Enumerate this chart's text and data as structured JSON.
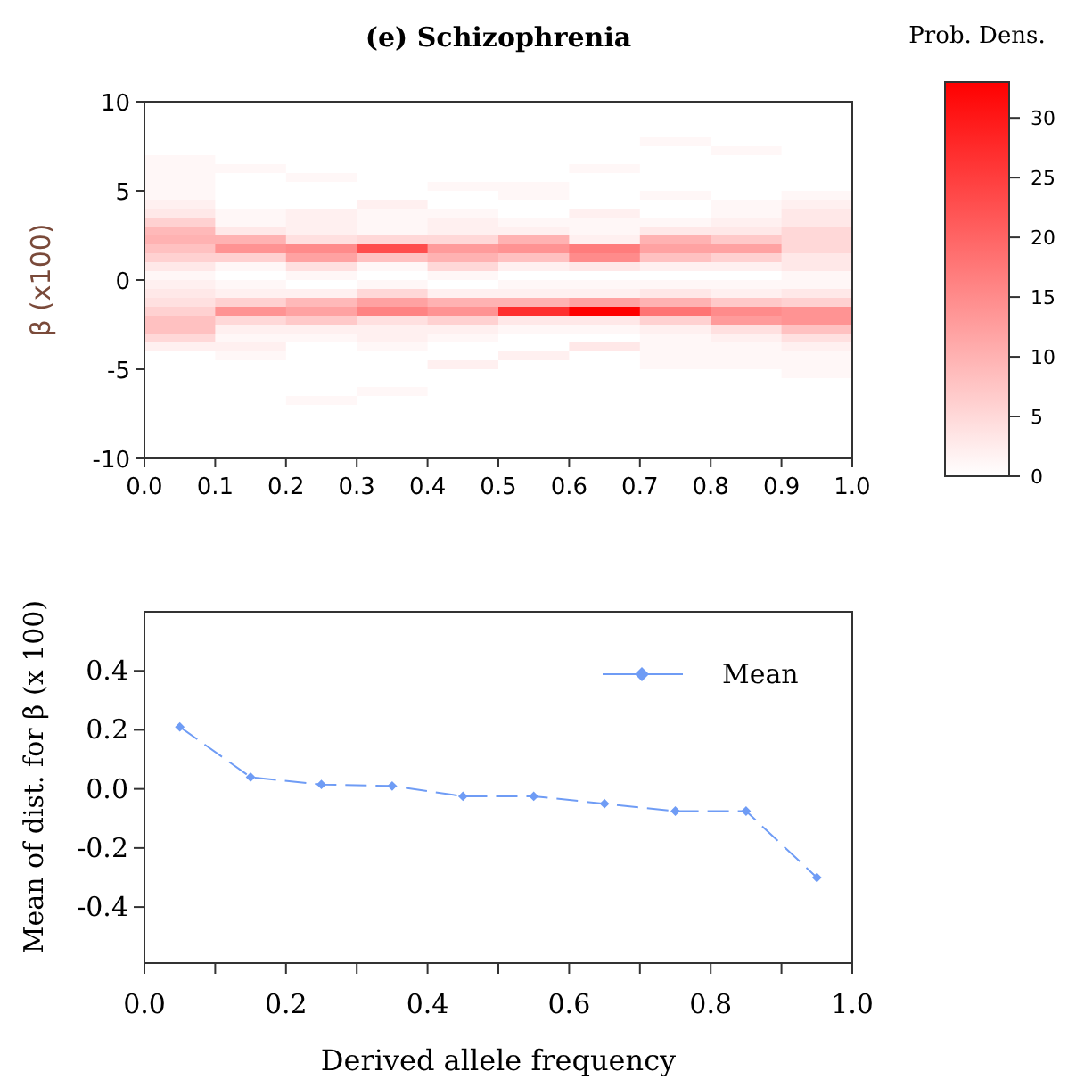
{
  "chart_data": [
    {
      "type": "heatmap",
      "title": "(e) Schizophrenia",
      "ylabel": "β (x100)",
      "clabel": "Prob. Dens.",
      "cells": [
        [
          0,
          0,
          0,
          0,
          0,
          0,
          0,
          0,
          0,
          0
        ],
        [
          0,
          0,
          0,
          0,
          0,
          0,
          0,
          0,
          0,
          0
        ],
        [
          0,
          0,
          0,
          0,
          0,
          0,
          0,
          0,
          0,
          0
        ],
        [
          0,
          0,
          0,
          0,
          0,
          0,
          0,
          0,
          0,
          0
        ],
        [
          0,
          0,
          0,
          0,
          0,
          0,
          0,
          1,
          0,
          0
        ],
        [
          0,
          0,
          0,
          0,
          0,
          0,
          0,
          0,
          1,
          0
        ],
        [
          1,
          0,
          0,
          0,
          0,
          0,
          0,
          0,
          0,
          0
        ],
        [
          1,
          1,
          0,
          0,
          0,
          0,
          1,
          0,
          0,
          0
        ],
        [
          1,
          0,
          1,
          0,
          0,
          0,
          0,
          0,
          0,
          0
        ],
        [
          1,
          0,
          0,
          0,
          1,
          1,
          0,
          0,
          0,
          0
        ],
        [
          1,
          0,
          0,
          0,
          0,
          1,
          0,
          1,
          0,
          1
        ],
        [
          2,
          0,
          0,
          2,
          0,
          0,
          0,
          0,
          1,
          2
        ],
        [
          3,
          1,
          2,
          1,
          1,
          0,
          2,
          0,
          1,
          3
        ],
        [
          6,
          1,
          2,
          1,
          2,
          1,
          1,
          1,
          2,
          3
        ],
        [
          9,
          3,
          2,
          1,
          2,
          2,
          1,
          3,
          3,
          5
        ],
        [
          10,
          10,
          4,
          5,
          5,
          10,
          2,
          10,
          7,
          5
        ],
        [
          8,
          14,
          15,
          23,
          13,
          14,
          17,
          12,
          12,
          5
        ],
        [
          6,
          6,
          12,
          8,
          10,
          8,
          15,
          8,
          6,
          3
        ],
        [
          3,
          1,
          4,
          1,
          5,
          2,
          3,
          2,
          2,
          3
        ],
        [
          1,
          0,
          1,
          0,
          1,
          0,
          0,
          0,
          0,
          1
        ],
        [
          2,
          1,
          0,
          1,
          0,
          1,
          1,
          1,
          1,
          1
        ],
        [
          3,
          2,
          2,
          5,
          2,
          2,
          2,
          3,
          2,
          3
        ],
        [
          4,
          6,
          9,
          12,
          10,
          10,
          12,
          10,
          7,
          6
        ],
        [
          6,
          14,
          12,
          16,
          14,
          27,
          33,
          18,
          15,
          14
        ],
        [
          8,
          5,
          7,
          4,
          6,
          3,
          3,
          6,
          13,
          14
        ],
        [
          8,
          2,
          2,
          2,
          2,
          1,
          1,
          2,
          4,
          8
        ],
        [
          5,
          1,
          1,
          2,
          1,
          0,
          0,
          1,
          2,
          4
        ],
        [
          2,
          2,
          0,
          1,
          0,
          0,
          3,
          1,
          1,
          2
        ],
        [
          0,
          1,
          0,
          0,
          0,
          2,
          0,
          1,
          1,
          1
        ],
        [
          0,
          0,
          0,
          0,
          2,
          0,
          0,
          1,
          1,
          1
        ],
        [
          0,
          0,
          0,
          0,
          0,
          0,
          0,
          0,
          0,
          1
        ],
        [
          0,
          0,
          0,
          0,
          0,
          0,
          0,
          0,
          0,
          0
        ],
        [
          0,
          0,
          0,
          1,
          0,
          0,
          0,
          0,
          0,
          0
        ],
        [
          0,
          0,
          1,
          0,
          0,
          0,
          0,
          0,
          0,
          0
        ],
        [
          0,
          0,
          0,
          0,
          0,
          0,
          0,
          0,
          0,
          0
        ],
        [
          0,
          0,
          0,
          0,
          0,
          0,
          0,
          0,
          0,
          0
        ],
        [
          0,
          0,
          0,
          0,
          0,
          0,
          0,
          0,
          0,
          0
        ],
        [
          0,
          0,
          0,
          0,
          0,
          0,
          0,
          0,
          0,
          0
        ],
        [
          0,
          0,
          0,
          0,
          0,
          0,
          0,
          0,
          0,
          0
        ],
        [
          0,
          0,
          0,
          0,
          0,
          0,
          0,
          0,
          0,
          0
        ]
      ],
      "clim": [
        0,
        33
      ],
      "cticks": [
        0,
        5,
        10,
        15,
        20,
        25,
        30
      ],
      "xlim": [
        0,
        1
      ],
      "xticks": [
        {
          "value": 0,
          "label": "0.0"
        },
        0.1,
        0.2,
        0.3,
        0.4,
        0.5,
        0.6,
        0.7,
        0.8,
        0.9,
        {
          "value": 1,
          "label": "1.0"
        }
      ],
      "ylim": [
        -10,
        10
      ],
      "yticks": [
        10,
        5,
        0,
        -5,
        -10
      ]
    },
    {
      "type": "line",
      "xlabel": "Derived allele frequency",
      "ylabel": "Mean of dist. for β (x 100)",
      "x": [
        0.05,
        0.15,
        0.25,
        0.35,
        0.45,
        0.55,
        0.65,
        0.75,
        0.85,
        0.95
      ],
      "series": [
        {
          "name": "Mean",
          "color": "#6f9cf5",
          "values": [
            0.21,
            0.04,
            0.015,
            0.01,
            -0.025,
            -0.025,
            -0.05,
            -0.075,
            -0.075,
            -0.3
          ]
        }
      ],
      "xlim": [
        0,
        1
      ],
      "xticks": [
        {
          "value": 0,
          "label": "0.0"
        },
        {
          "value": 0.1,
          "label": null
        },
        0.2,
        {
          "value": 0.3,
          "label": null
        },
        0.4,
        {
          "value": 0.5,
          "label": null
        },
        0.6,
        {
          "value": 0.7,
          "label": null
        },
        0.8,
        {
          "value": 0.9,
          "label": null
        },
        {
          "value": 1,
          "label": "1.0"
        }
      ],
      "ylim": [
        -0.59,
        0.6
      ],
      "yticks": [
        0.4,
        0.2,
        {
          "value": 0,
          "label": "0.0"
        },
        -0.2,
        -0.4
      ],
      "legend": "top right",
      "marker": "diamond",
      "line_style": "dashed"
    }
  ]
}
